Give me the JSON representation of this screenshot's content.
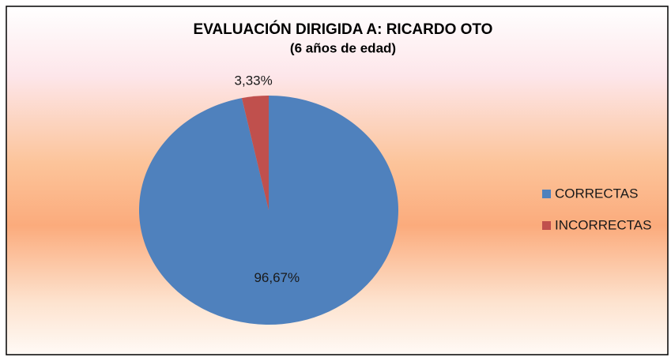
{
  "chart_data": {
    "type": "pie",
    "title": "EVALUACIÓN DIRIGIDA A: RICARDO OTO",
    "subtitle": "(6 años de edad)",
    "categories": [
      "CORRECTAS",
      "INCORRECTAS"
    ],
    "values": [
      96.67,
      3.33
    ],
    "value_labels": [
      "96,67%",
      "3,33%"
    ],
    "colors": [
      "#4f81bd",
      "#c0504d"
    ],
    "legend": "right"
  }
}
